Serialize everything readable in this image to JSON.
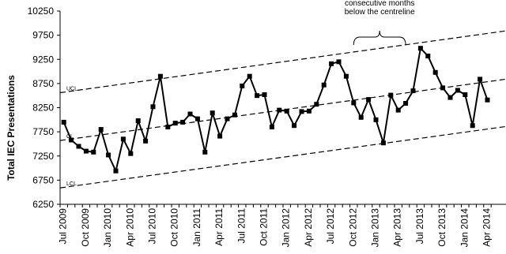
{
  "chart_data": {
    "type": "line",
    "ylabel": "Total IEC Presentations",
    "ylim": [
      6250,
      10250
    ],
    "yticks": [
      6250,
      6750,
      7250,
      7750,
      8250,
      8750,
      9250,
      9750,
      10250
    ],
    "xlabels": [
      "Jul 2009",
      "Oct 2009",
      "Jan 2010",
      "Apr 2010",
      "Jul 2010",
      "Oct 2010",
      "Jan 2011",
      "Apr 2011",
      "Jul 2011",
      "Oct 2011",
      "Jan 2012",
      "Apr 2012",
      "Jul 2012",
      "Oct 2012",
      "Jan 2013",
      "Apr 2013",
      "Jul 2013",
      "Oct 2013",
      "Jan 2014",
      "Apr 2014"
    ],
    "grid": false,
    "limit_labels": {
      "ucl": "UCL",
      "cl": "CL",
      "lcl": "LCL"
    },
    "control_lines": {
      "ucl": {
        "start": 8560,
        "end": 9840
      },
      "cl": {
        "start": 7570,
        "end": 8840
      },
      "lcl": {
        "start": 6590,
        "end": 7860
      }
    },
    "annotation": {
      "lines": [
        "consecutive months",
        "below the centreline"
      ],
      "from_index": 39,
      "to_index": 46
    },
    "values": [
      7950,
      7580,
      7450,
      7350,
      7330,
      7800,
      7270,
      6940,
      7600,
      7300,
      7980,
      7560,
      8270,
      8900,
      7850,
      7930,
      7950,
      8120,
      8020,
      7330,
      8140,
      7660,
      8020,
      8100,
      8700,
      8900,
      8500,
      8520,
      7850,
      8200,
      8180,
      7880,
      8170,
      8180,
      8320,
      8720,
      9160,
      9200,
      8900,
      8350,
      8050,
      8420,
      8000,
      7520,
      8510,
      8200,
      8340,
      8600,
      9480,
      9320,
      8980,
      8660,
      8460,
      8610,
      8520,
      7880,
      8840,
      8410
    ]
  }
}
